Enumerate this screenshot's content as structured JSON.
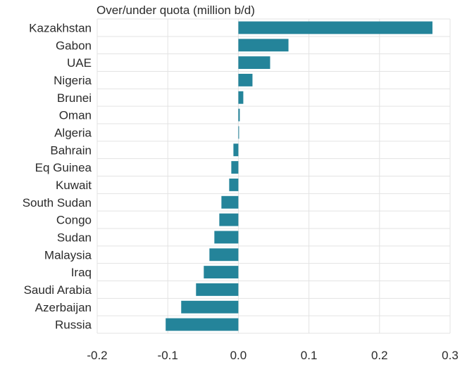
{
  "chart_data": {
    "type": "bar",
    "orientation": "horizontal",
    "title": "Over/under quota (million b/d)",
    "xlabel": "",
    "ylabel": "",
    "xlim": [
      -0.2,
      0.3
    ],
    "xticks": [
      -0.2,
      -0.1,
      0.0,
      0.1,
      0.2,
      0.3
    ],
    "xtick_labels": [
      "-0.2",
      "-0.1",
      "0.0",
      "0.1",
      "0.2",
      "0.3"
    ],
    "grid": true,
    "bar_color": "#24849a",
    "categories": [
      "Kazakhstan",
      "Gabon",
      "UAE",
      "Nigeria",
      "Brunei",
      "Oman",
      "Algeria",
      "Bahrain",
      "Eq Guinea",
      "Kuwait",
      "South Sudan",
      "Congo",
      "Sudan",
      "Malaysia",
      "Iraq",
      "Saudi Arabia",
      "Azerbaijan",
      "Russia"
    ],
    "values": [
      0.275,
      0.071,
      0.045,
      0.02,
      0.007,
      0.002,
      0.001,
      -0.007,
      -0.01,
      -0.013,
      -0.024,
      -0.027,
      -0.034,
      -0.041,
      -0.049,
      -0.06,
      -0.081,
      -0.103
    ]
  }
}
